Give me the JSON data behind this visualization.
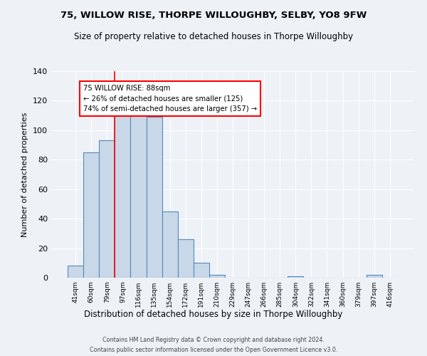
{
  "title": "75, WILLOW RISE, THORPE WILLOUGHBY, SELBY, YO8 9FW",
  "subtitle": "Size of property relative to detached houses in Thorpe Willoughby",
  "xlabel": "Distribution of detached houses by size in Thorpe Willoughby",
  "ylabel": "Number of detached properties",
  "categories": [
    "41sqm",
    "60sqm",
    "79sqm",
    "97sqm",
    "116sqm",
    "135sqm",
    "154sqm",
    "172sqm",
    "191sqm",
    "210sqm",
    "229sqm",
    "247sqm",
    "266sqm",
    "285sqm",
    "304sqm",
    "322sqm",
    "341sqm",
    "360sqm",
    "379sqm",
    "397sqm",
    "416sqm"
  ],
  "values": [
    8,
    85,
    93,
    110,
    110,
    109,
    45,
    26,
    10,
    2,
    0,
    0,
    0,
    0,
    1,
    0,
    0,
    0,
    0,
    2,
    0
  ],
  "bar_color": "#c8d8e8",
  "bar_edge_color": "#5588bb",
  "red_line_index": 2.5,
  "annotation_text_line1": "75 WILLOW RISE: 88sqm",
  "annotation_text_line2": "← 26% of detached houses are smaller (125)",
  "annotation_text_line3": "74% of semi-detached houses are larger (357) →",
  "ylim": [
    0,
    140
  ],
  "yticks": [
    0,
    20,
    40,
    60,
    80,
    100,
    120,
    140
  ],
  "footnote1": "Contains HM Land Registry data © Crown copyright and database right 2024.",
  "footnote2": "Contains public sector information licensed under the Open Government Licence v3.0.",
  "bg_color": "#eef2f7"
}
